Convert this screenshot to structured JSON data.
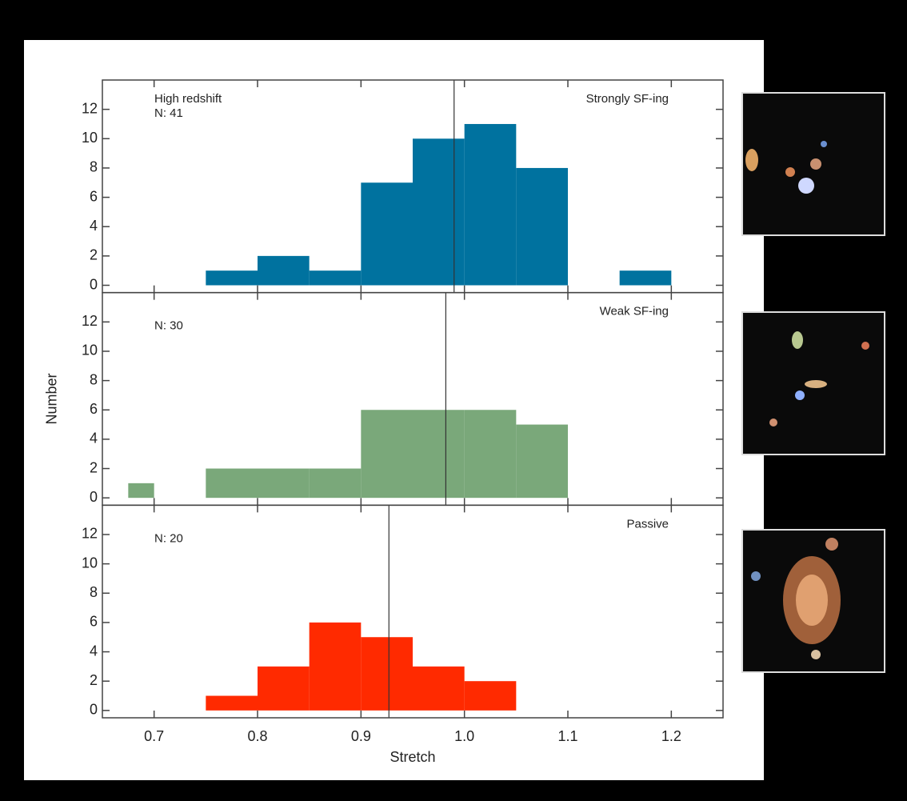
{
  "chart_data": [
    {
      "type": "histogram",
      "label": "High redshift",
      "count_label": "N: 41",
      "title": "Strongly SF-ing",
      "bins": [
        0.75,
        0.8,
        0.85,
        0.9,
        0.95,
        1.0,
        1.05,
        1.1,
        1.15,
        1.2
      ],
      "values": [
        1,
        2,
        1,
        7,
        10,
        11,
        8,
        0,
        1
      ],
      "color": "#00729f",
      "vline": 0.99,
      "xlim": [
        0.65,
        1.25
      ],
      "xticks": [
        0.7,
        0.8,
        0.9,
        1,
        1.1,
        1.2
      ],
      "ylim": [
        -0.5,
        14
      ],
      "yticks": [
        0,
        2,
        4,
        6,
        8,
        10,
        12
      ]
    },
    {
      "type": "histogram",
      "count_label": "N: 30",
      "title": "Weak SF-ing",
      "ylabel": "Number",
      "bins": [
        0.675,
        0.7,
        0.75,
        0.8,
        0.85,
        0.9,
        0.95,
        1.0,
        1.05,
        1.1
      ],
      "values": [
        1,
        0,
        2,
        2,
        2,
        6,
        6,
        6,
        5
      ],
      "color": "#7aa87a",
      "vline": 0.982,
      "xlim": [
        0.65,
        1.25
      ],
      "xticks": [
        0.7,
        0.8,
        0.9,
        1,
        1.1,
        1.2
      ],
      "ylim": [
        -0.5,
        14
      ],
      "yticks": [
        0,
        2,
        4,
        6,
        8,
        10,
        12
      ]
    },
    {
      "type": "histogram",
      "count_label": "N: 20",
      "title": "Passive",
      "xlabel": "Stretch",
      "bins": [
        0.75,
        0.8,
        0.85,
        0.9,
        0.95,
        1.0,
        1.05
      ],
      "values": [
        1,
        3,
        6,
        5,
        3,
        2
      ],
      "color": "#ff2a00",
      "vline": 0.927,
      "xlim": [
        0.65,
        1.25
      ],
      "xticks": [
        0.7,
        0.8,
        0.9,
        {
          "value": 1,
          "label": "1.0"
        },
        1.1,
        1.2
      ],
      "ylim": [
        -0.5,
        14
      ],
      "yticks": [
        0,
        2,
        4,
        6,
        8,
        10,
        12
      ]
    }
  ]
}
